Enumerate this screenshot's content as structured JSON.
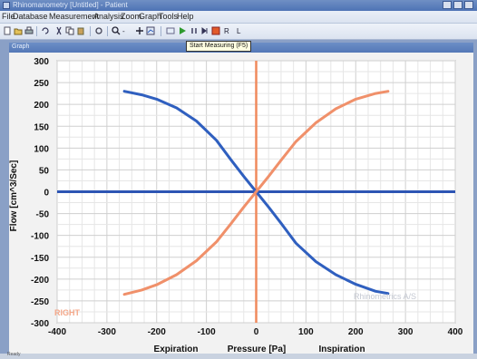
{
  "window": {
    "title": "Rhinomanometry [Untitled] - Patient"
  },
  "menu": {
    "items": [
      "File",
      "Database",
      "Measurement",
      "Analysis",
      "Zoom",
      "Graph",
      "Tools",
      "Help"
    ]
  },
  "toolbar": {
    "tooltip": "Start Measuring (F5)"
  },
  "panel": {
    "title": "Graph"
  },
  "status": {
    "text": "Ready"
  },
  "colors": {
    "expiration_curve": "#2f5fbf",
    "inspiration_curve": "#f0906a",
    "axis_blue": "#2d55b4",
    "axis_orange": "#f08a5d"
  },
  "chart_data": {
    "type": "line",
    "xlabel": "Pressure [Pa]",
    "ylabel": "Flow [cm^3/Sec]",
    "x_side_labels": {
      "left": "Expiration",
      "right": "Inspiration"
    },
    "xlim": [
      -400,
      400
    ],
    "ylim": [
      -300,
      300
    ],
    "xticks": [
      -400,
      -300,
      -200,
      -100,
      0,
      100,
      200,
      300,
      400
    ],
    "yticks": [
      300,
      250,
      200,
      150,
      100,
      50,
      0,
      -50,
      -100,
      -150,
      -200,
      -250,
      -300
    ],
    "grid": true,
    "annotations": {
      "watermark": "Rhinometrics A/S",
      "side_label": "RIGHT"
    },
    "series": [
      {
        "color": "#2f5fbf",
        "points": [
          [
            -265,
            230
          ],
          [
            -230,
            222
          ],
          [
            -200,
            212
          ],
          [
            -160,
            192
          ],
          [
            -120,
            162
          ],
          [
            -80,
            118
          ],
          [
            -50,
            72
          ],
          [
            -25,
            35
          ],
          [
            0,
            0
          ],
          [
            25,
            -35
          ],
          [
            50,
            -72
          ],
          [
            80,
            -118
          ],
          [
            120,
            -160
          ],
          [
            160,
            -190
          ],
          [
            200,
            -212
          ],
          [
            240,
            -228
          ],
          [
            265,
            -233
          ]
        ]
      },
      {
        "color": "#f0906a",
        "points": [
          [
            -265,
            -235
          ],
          [
            -230,
            -225
          ],
          [
            -200,
            -213
          ],
          [
            -160,
            -190
          ],
          [
            -120,
            -158
          ],
          [
            -80,
            -115
          ],
          [
            -50,
            -72
          ],
          [
            -25,
            -35
          ],
          [
            0,
            0
          ],
          [
            25,
            35
          ],
          [
            50,
            72
          ],
          [
            80,
            115
          ],
          [
            120,
            158
          ],
          [
            160,
            190
          ],
          [
            200,
            212
          ],
          [
            240,
            225
          ],
          [
            265,
            230
          ]
        ]
      }
    ]
  }
}
